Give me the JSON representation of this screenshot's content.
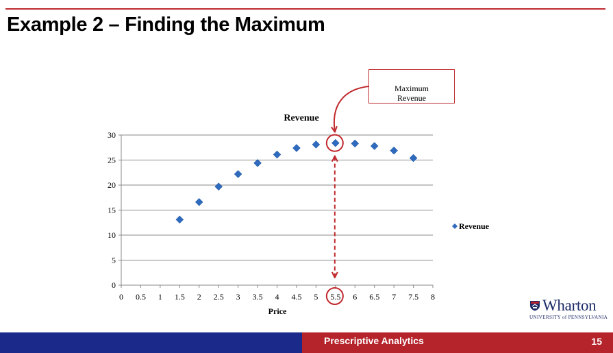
{
  "slide": {
    "title": "Example 2 – Finding the Maximum",
    "footer_label": "Prescriptive Analytics",
    "page_number": "15",
    "accent_red": "#c0282d",
    "footer_blue": "#1b2a8a",
    "footer_red": "#b5232b"
  },
  "callout": {
    "line1": "Maximum",
    "line2": "Revenue"
  },
  "logo": {
    "name": "Wharton",
    "subtitle": "UNIVERSITY of PENNSYLVANIA",
    "icon": "penn-shield-icon"
  },
  "chart_data": {
    "type": "scatter",
    "title": "Revenue",
    "xlabel": "Price",
    "ylabel": "",
    "xlim": [
      0,
      8
    ],
    "ylim": [
      0,
      30
    ],
    "x_ticks": [
      "0",
      "0.5",
      "1",
      "1.5",
      "2",
      "2.5",
      "3",
      "3.5",
      "4",
      "4.5",
      "5",
      "5.5",
      "6",
      "6.5",
      "7",
      "7.5",
      "8"
    ],
    "y_ticks": [
      "0",
      "5",
      "10",
      "15",
      "20",
      "25",
      "30"
    ],
    "grid": "horizontal",
    "legend_position": "right",
    "marker": "diamond",
    "marker_color": "#2e6bbf",
    "series": [
      {
        "name": "Revenue",
        "x": [
          1.5,
          2,
          2.5,
          3,
          3.5,
          4,
          4.5,
          5,
          5.5,
          6,
          6.5,
          7,
          7.5
        ],
        "y": [
          13.1,
          16.6,
          19.7,
          22.2,
          24.4,
          26.1,
          27.4,
          28.1,
          28.4,
          28.3,
          27.8,
          26.9,
          25.4
        ]
      }
    ],
    "annotation": {
      "max_x": 5.5,
      "max_y": 28.4
    }
  }
}
